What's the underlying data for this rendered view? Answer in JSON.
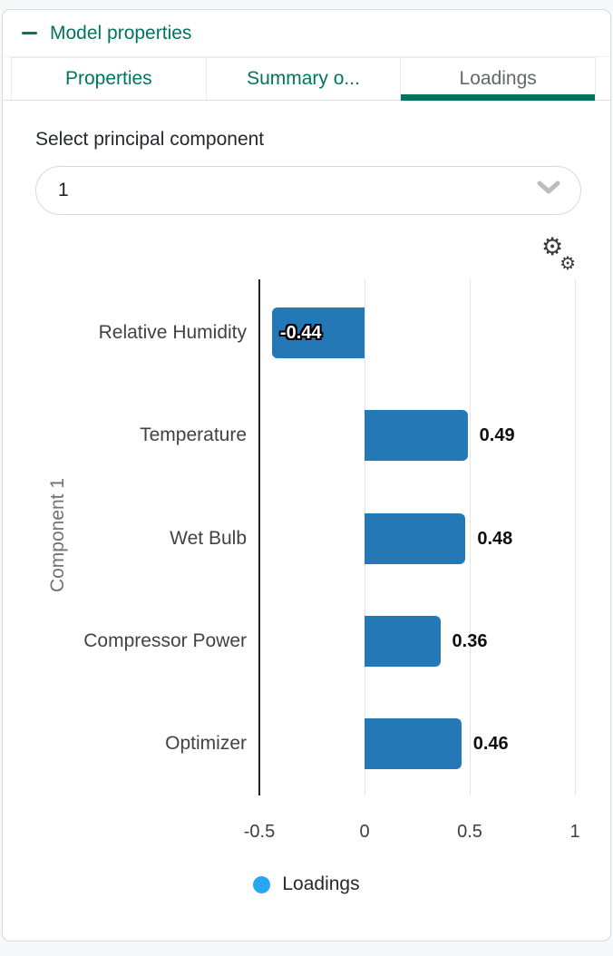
{
  "panel": {
    "title": "Model properties"
  },
  "tabs": [
    {
      "label": "Properties",
      "active": false
    },
    {
      "label": "Summary o...",
      "active": false
    },
    {
      "label": "Loadings",
      "active": true
    }
  ],
  "content": {
    "select_label": "Select principal component",
    "select_value": "1"
  },
  "icons": {
    "collapse": "minus-icon",
    "dropdown": "chevron-down-icon",
    "settings": "double-gear-icon"
  },
  "colors": {
    "accent": "#00745e",
    "bar": "#2478b5",
    "legend_dot": "#27a6f4",
    "axis_line": "#202124"
  },
  "chart_data": {
    "type": "bar",
    "orientation": "horizontal",
    "categories": [
      "Relative Humidity",
      "Temperature",
      "Wet Bulb",
      "Compressor Power",
      "Optimizer"
    ],
    "values": [
      -0.44,
      0.49,
      0.48,
      0.36,
      0.46
    ],
    "value_labels": [
      "-0.44",
      "0.49",
      "0.48",
      "0.36",
      "0.46"
    ],
    "ylabel": "Component 1",
    "xlabel": "",
    "xlim": [
      -0.5,
      1
    ],
    "xticks": [
      -0.5,
      0,
      0.5,
      1
    ],
    "xtick_labels": [
      "-0.5",
      "0",
      "0.5",
      "1"
    ],
    "grid": true,
    "legend_position": "bottom",
    "legend": [
      {
        "label": "Loadings",
        "color": "#27a6f4"
      }
    ],
    "bar_color": "#2478b5"
  }
}
